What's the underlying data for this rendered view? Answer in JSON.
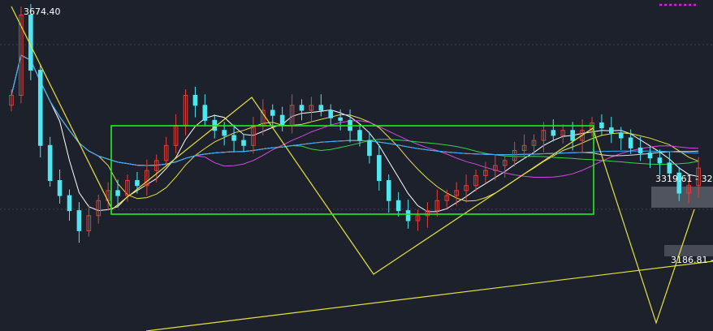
{
  "chart_data": {
    "type": "candlestick",
    "colors": {
      "background": "#1c212c",
      "grid": "#3a4150",
      "up": "#e0413a",
      "down": "#4ee6f0",
      "box": "#22ee22",
      "zigzag": "#e6e23a",
      "ma5": "#ffffff",
      "ma10": "#e8e04a",
      "ma20": "#d24be0",
      "ma30": "#3ad24a",
      "ma60": "#dddddd",
      "ma120": "#3aa8ff",
      "ma250": "#e6e23a",
      "band": "#7a7f88",
      "legend": "#e01be0"
    },
    "high_label": "3674.40",
    "mid_label": "3319.61 - 32",
    "low_label": "3186.81 -",
    "ylim": [
      3030,
      3690
    ],
    "key_levels": [
      3674.4,
      3319.61,
      3186.81
    ],
    "closes": [
      3500,
      3660,
      3550,
      3400,
      3330,
      3300,
      3270,
      3230,
      3260,
      3290,
      3310,
      3300,
      3330,
      3320,
      3350,
      3370,
      3400,
      3440,
      3500,
      3480,
      3450,
      3430,
      3420,
      3410,
      3400,
      3440,
      3470,
      3460,
      3440,
      3480,
      3470,
      3480,
      3470,
      3455,
      3450,
      3430,
      3410,
      3380,
      3330,
      3290,
      3270,
      3250,
      3260,
      3270,
      3290,
      3300,
      3310,
      3320,
      3340,
      3350,
      3360,
      3370,
      3390,
      3400,
      3410,
      3430,
      3420,
      3430,
      3410,
      3430,
      3445,
      3435,
      3425,
      3415,
      3395,
      3385,
      3375,
      3365,
      3345,
      3305,
      3320,
      3355
    ]
  }
}
